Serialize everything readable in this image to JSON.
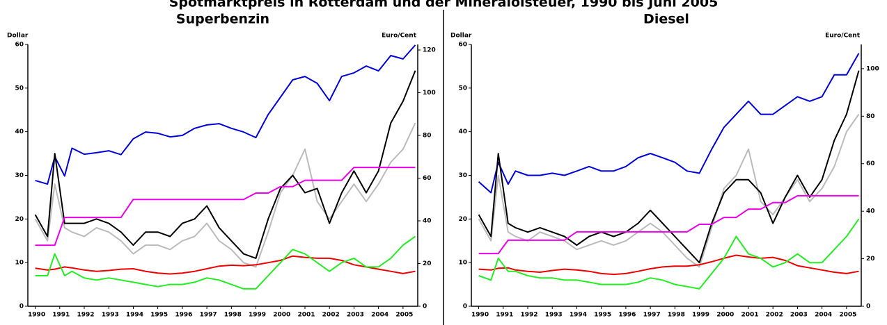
{
  "title": "Spotmarktpreis in Rotterdam und der Mineralölsteuer, 1990 bis Juni 2005",
  "chart_data": [
    {
      "type": "line",
      "title": "Superbenzin",
      "y_label": "Dollar",
      "y2_label": "Euro/Cent",
      "x": [
        1990,
        1990.5,
        1990.8,
        1991.2,
        1991.5,
        1992,
        1992.5,
        1993,
        1993.5,
        1994,
        1994.5,
        1995,
        1995.5,
        1996,
        1996.5,
        1997,
        1997.5,
        1998,
        1998.5,
        1999,
        1999.5,
        2000,
        2000.5,
        2001,
        2001.5,
        2002,
        2002.5,
        2003,
        2003.5,
        2004,
        2004.5,
        2005,
        2005.5
      ],
      "xlim": [
        1989.7,
        2005.6
      ],
      "xticks": [
        1990,
        1991,
        1992,
        1993,
        1994,
        1995,
        1996,
        1997,
        1998,
        1999,
        2000,
        2001,
        2002,
        2003,
        2004,
        2005
      ],
      "ylim": [
        0,
        60
      ],
      "yticks": [
        0,
        10,
        20,
        30,
        40,
        50,
        60
      ],
      "y2lim": [
        0,
        122.6
      ],
      "y2ticks": [
        0,
        20,
        40,
        60,
        80,
        100,
        120
      ],
      "series": [
        {
          "color": "#0000dd",
          "axis": "y2",
          "values": [
            58.9,
            57.2,
            70,
            61,
            74,
            71.2,
            71.9,
            72.8,
            71,
            78.4,
            81.6,
            81,
            79.3,
            80,
            83.3,
            84.9,
            85.5,
            83.3,
            81.6,
            79,
            89.8,
            97.9,
            106,
            107.6,
            104.4,
            96.3,
            107.6,
            109.3,
            112.5,
            110.2,
            117.4,
            115.8,
            122.3
          ]
        },
        {
          "color": "#bbbbbb",
          "axis": "y",
          "values": [
            20,
            15,
            28,
            18,
            17,
            16,
            18,
            17,
            15,
            12,
            14,
            14,
            13,
            15,
            16,
            19,
            15,
            13,
            10,
            9,
            17,
            26,
            30,
            36,
            24,
            20,
            24,
            28,
            24,
            28,
            33,
            36,
            42
          ]
        },
        {
          "color": "#000000",
          "axis": "y",
          "values": [
            21,
            16,
            35,
            19,
            19,
            19,
            20,
            19,
            17,
            14,
            17,
            17,
            16,
            19,
            20,
            23,
            18,
            15,
            12,
            11,
            20,
            27,
            30,
            26,
            27,
            19,
            26,
            31,
            26,
            31,
            42,
            47,
            54
          ]
        },
        {
          "color": "#ee00ee",
          "axis": "y2",
          "values": [
            28.6,
            28.6,
            28.6,
            41.6,
            41.6,
            41.6,
            41.6,
            41.6,
            41.6,
            50,
            50,
            50,
            50,
            50,
            50,
            50,
            50,
            50,
            50,
            53,
            53,
            56,
            56,
            59,
            59,
            59,
            59,
            65,
            65,
            65,
            65,
            65,
            65
          ]
        },
        {
          "color": "#ee0000",
          "axis": "y",
          "values": [
            8.7,
            8.3,
            8.5,
            9,
            8.8,
            8.3,
            8,
            8.2,
            8.5,
            8.6,
            8,
            7.6,
            7.4,
            7.6,
            8,
            8.6,
            9.2,
            9.4,
            9.3,
            9.5,
            10,
            10.5,
            11.5,
            11.2,
            11,
            11,
            10.5,
            9.5,
            9,
            8.5,
            8,
            7.5,
            8
          ]
        },
        {
          "color": "#22ee22",
          "axis": "y",
          "values": [
            7,
            7,
            12,
            7,
            8,
            6.5,
            6,
            6.5,
            6,
            5.5,
            5,
            4.5,
            5,
            5,
            5.5,
            6.5,
            6,
            5,
            4,
            4,
            7,
            10,
            13,
            12,
            10,
            8,
            10,
            11,
            9,
            9,
            11,
            14,
            16
          ]
        }
      ]
    },
    {
      "type": "line",
      "title": "Diesel",
      "y_label": "Dollar",
      "y2_label": "Euro/Cent",
      "x": [
        1990,
        1990.5,
        1990.8,
        1991.2,
        1991.5,
        1992,
        1992.5,
        1993,
        1993.5,
        1994,
        1994.5,
        1995,
        1995.5,
        1996,
        1996.5,
        1997,
        1997.5,
        1998,
        1998.5,
        1999,
        1999.5,
        2000,
        2000.5,
        2001,
        2001.5,
        2002,
        2002.5,
        2003,
        2003.5,
        2004,
        2004.5,
        2005,
        2005.5
      ],
      "xlim": [
        1989.7,
        2005.6
      ],
      "xticks": [
        1990,
        1991,
        1992,
        1993,
        1994,
        1995,
        1996,
        1997,
        1998,
        1999,
        2000,
        2001,
        2002,
        2003,
        2004,
        2005
      ],
      "ylim": [
        0,
        60
      ],
      "yticks": [
        0,
        10,
        20,
        30,
        40,
        50,
        60
      ],
      "y2lim": [
        0,
        110.2
      ],
      "y2ticks": [
        0,
        20,
        40,
        60,
        80,
        100
      ],
      "series": [
        {
          "color": "#0000dd",
          "axis": "y2",
          "values": [
            52.4,
            47.8,
            60.6,
            51.4,
            56.9,
            55.1,
            55.1,
            56,
            55.1,
            56.9,
            58.8,
            56.9,
            56.9,
            58.8,
            62.5,
            64.3,
            62.5,
            60.6,
            56.9,
            56,
            66.1,
            75.3,
            80.8,
            86.3,
            80.8,
            80.8,
            84.5,
            88.2,
            86.3,
            88.2,
            97.4,
            97.4,
            106.5
          ]
        },
        {
          "color": "#bbbbbb",
          "axis": "y",
          "values": [
            20,
            15,
            30,
            17,
            16,
            15,
            17,
            16,
            15,
            13,
            14,
            15,
            14,
            15,
            17,
            19,
            17,
            14,
            11,
            9,
            18,
            27,
            30,
            36,
            24,
            21,
            25,
            29,
            24,
            27,
            32,
            40,
            44
          ]
        },
        {
          "color": "#000000",
          "axis": "y",
          "values": [
            21,
            16,
            35,
            19,
            18,
            17,
            18,
            17,
            16,
            14,
            16,
            17,
            16,
            17,
            19,
            22,
            19,
            16,
            13,
            10,
            19,
            26,
            29,
            29,
            26,
            19,
            25,
            30,
            25,
            29,
            38,
            44,
            54
          ]
        },
        {
          "color": "#ee00ee",
          "axis": "y2",
          "values": [
            22.2,
            22.2,
            22.2,
            27.8,
            27.8,
            27.8,
            27.8,
            27.8,
            27.8,
            31.3,
            31.3,
            31.3,
            31.3,
            31.3,
            31.3,
            31.3,
            31.3,
            31.3,
            31.3,
            34.5,
            34.5,
            37.4,
            37.4,
            40.9,
            40.9,
            43.6,
            43.6,
            46.5,
            46.5,
            46.5,
            46.5,
            46.5,
            46.5
          ]
        },
        {
          "color": "#ee0000",
          "axis": "y",
          "values": [
            8.5,
            8.3,
            8.7,
            8.8,
            8.3,
            8,
            7.8,
            8.2,
            8.5,
            8.3,
            8,
            7.5,
            7.3,
            7.5,
            8,
            8.6,
            9,
            9.2,
            9.2,
            9.5,
            10.2,
            11,
            11.7,
            11.3,
            11,
            11.2,
            10.5,
            9.3,
            8.8,
            8.3,
            7.8,
            7.5,
            8
          ]
        },
        {
          "color": "#22ee22",
          "axis": "y",
          "values": [
            7,
            6,
            11,
            8,
            8,
            7,
            6.5,
            6.5,
            6,
            6,
            5.5,
            5,
            5,
            5,
            5.5,
            6.5,
            6,
            5,
            4.5,
            4,
            7.5,
            11,
            16,
            12,
            11,
            9,
            10,
            12,
            10,
            10,
            13,
            16,
            20
          ]
        }
      ]
    }
  ]
}
